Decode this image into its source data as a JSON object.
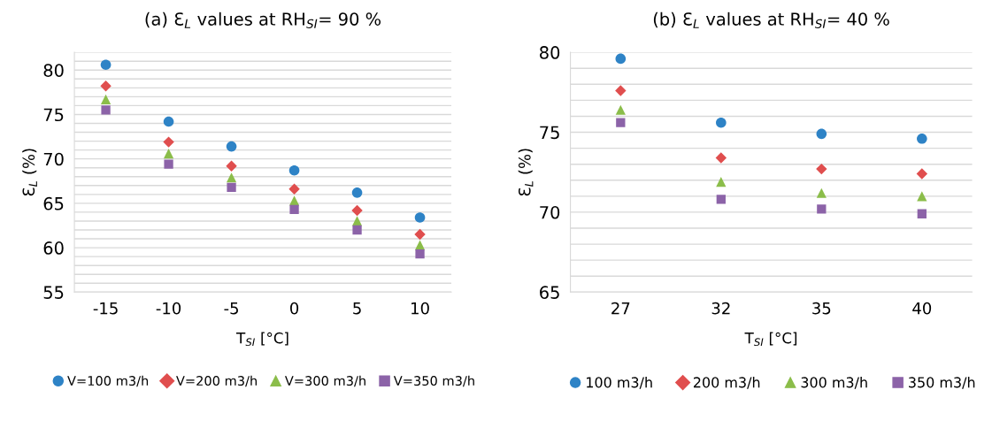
{
  "chart_data": [
    {
      "type": "scatter",
      "title": "(a) Ɛ$_{L}$ values at RH$_{SI}$= 90 %",
      "xlabel": "T$_{SI}$ [°C]",
      "ylabel": "Ɛ$_{L}$ (%)",
      "categories": [
        "-15",
        "-10",
        "-5",
        "0",
        "5",
        "10"
      ],
      "series": [
        {
          "name": "V=100 m3/h",
          "color": "#2e83c6",
          "marker": "circle",
          "values": [
            80.6,
            74.2,
            71.4,
            68.7,
            66.2,
            63.4
          ]
        },
        {
          "name": "V=200 m3/h",
          "color": "#e04e4e",
          "marker": "diamond",
          "values": [
            78.2,
            71.9,
            69.2,
            66.6,
            64.2,
            61.5
          ]
        },
        {
          "name": "V=300 m3/h",
          "color": "#8bbd4a",
          "marker": "triangle",
          "values": [
            76.7,
            70.6,
            67.9,
            65.3,
            63.0,
            60.3
          ]
        },
        {
          "name": "V=350 m3/h",
          "color": "#8c63a8",
          "marker": "square",
          "values": [
            75.5,
            69.4,
            66.8,
            64.3,
            62.0,
            59.3
          ]
        }
      ],
      "ylim": [
        55,
        82
      ],
      "yticks": [
        55,
        {
          "value": 56,
          "label": null
        },
        {
          "value": 57,
          "label": null
        },
        {
          "value": 58,
          "label": null
        },
        {
          "value": 59,
          "label": null
        },
        60,
        {
          "value": 61,
          "label": null
        },
        {
          "value": 62,
          "label": null
        },
        {
          "value": 63,
          "label": null
        },
        {
          "value": 64,
          "label": null
        },
        65,
        {
          "value": 66,
          "label": null
        },
        {
          "value": 67,
          "label": null
        },
        {
          "value": 68,
          "label": null
        },
        {
          "value": 69,
          "label": null
        },
        70,
        {
          "value": 71,
          "label": null
        },
        {
          "value": 72,
          "label": null
        },
        {
          "value": 73,
          "label": null
        },
        {
          "value": 74,
          "label": null
        },
        75,
        {
          "value": 76,
          "label": null
        },
        {
          "value": 77,
          "label": null
        },
        {
          "value": 78,
          "label": null
        },
        {
          "value": 79,
          "label": null
        },
        80,
        {
          "value": 81,
          "label": null
        },
        {
          "value": 82,
          "label": null
        }
      ],
      "grid": "y",
      "legend": "bottom"
    },
    {
      "type": "scatter",
      "title": "(b) Ɛ$_{L}$ values at RH$_{SI}$= 40 %",
      "xlabel": "T$_{SI}$ [°C]",
      "ylabel": "Ɛ$_{L}$ (%)",
      "categories": [
        "27",
        "32",
        "35",
        "40"
      ],
      "series": [
        {
          "name": "100 m3/h",
          "color": "#2e83c6",
          "marker": "circle",
          "values": [
            79.6,
            75.6,
            74.9,
            74.6
          ]
        },
        {
          "name": "200 m3/h",
          "color": "#e04e4e",
          "marker": "diamond",
          "values": [
            77.6,
            73.4,
            72.7,
            72.4
          ]
        },
        {
          "name": "300 m3/h",
          "color": "#8bbd4a",
          "marker": "triangle",
          "values": [
            76.4,
            71.9,
            71.2,
            71.0
          ]
        },
        {
          "name": "350 m3/h",
          "color": "#8c63a8",
          "marker": "square",
          "values": [
            75.6,
            70.8,
            70.2,
            69.9
          ]
        }
      ],
      "ylim": [
        65,
        80
      ],
      "yticks": [
        65,
        {
          "value": 66,
          "label": null
        },
        {
          "value": 67,
          "label": null
        },
        {
          "value": 68,
          "label": null
        },
        {
          "value": 69,
          "label": null
        },
        70,
        {
          "value": 71,
          "label": null
        },
        {
          "value": 72,
          "label": null
        },
        {
          "value": 73,
          "label": null
        },
        {
          "value": 74,
          "label": null
        },
        75,
        {
          "value": 76,
          "label": null
        },
        {
          "value": 77,
          "label": null
        },
        {
          "value": 78,
          "label": null
        },
        {
          "value": 79,
          "label": null
        },
        80
      ],
      "grid": "y",
      "legend": "bottom"
    }
  ]
}
